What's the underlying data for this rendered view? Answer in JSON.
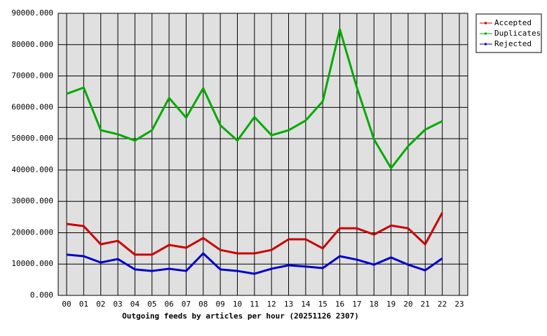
{
  "chart_data": {
    "type": "line",
    "xlabel": "Outgoing feeds by articles per hour (20251126 2307)",
    "categories": [
      "00",
      "01",
      "02",
      "03",
      "04",
      "05",
      "06",
      "07",
      "08",
      "09",
      "10",
      "11",
      "12",
      "13",
      "14",
      "15",
      "16",
      "17",
      "18",
      "19",
      "20",
      "21",
      "22",
      "23"
    ],
    "series": [
      {
        "name": "Accepted",
        "color": "#cc0000",
        "values": [
          22800,
          22100,
          16300,
          17400,
          13000,
          13000,
          16100,
          15200,
          18300,
          14500,
          13400,
          13400,
          14500,
          17900,
          17900,
          15000,
          21400,
          21400,
          19400,
          22300,
          21400,
          16300,
          26400,
          null
        ]
      },
      {
        "name": "Duplicates",
        "color": "#00aa00",
        "values": [
          64300,
          66300,
          52700,
          51400,
          49400,
          52700,
          63000,
          56700,
          66100,
          54300,
          49400,
          56900,
          51100,
          52700,
          55800,
          61900,
          84900,
          66300,
          49800,
          40600,
          47600,
          52900,
          55600,
          null
        ]
      },
      {
        "name": "Rejected",
        "color": "#0000cc",
        "values": [
          13000,
          12500,
          10500,
          11600,
          8300,
          7800,
          8500,
          7800,
          13400,
          8300,
          7800,
          6900,
          8500,
          9600,
          9200,
          8700,
          12500,
          11400,
          9800,
          12100,
          9800,
          8000,
          11800,
          null
        ]
      }
    ],
    "ylim": [
      0,
      90000
    ],
    "yticks": [
      {
        "value": 0,
        "label": "0.000"
      },
      {
        "value": 10000,
        "label": "10000.000"
      },
      {
        "value": 20000,
        "label": "20000.000"
      },
      {
        "value": 30000,
        "label": "30000.000"
      },
      {
        "value": 40000,
        "label": "40000.000"
      },
      {
        "value": 50000,
        "label": "50000.000"
      },
      {
        "value": 60000,
        "label": "60000.000"
      },
      {
        "value": 70000,
        "label": "70000.000"
      },
      {
        "value": 80000,
        "label": "80000.000"
      },
      {
        "value": 90000,
        "label": "90000.000"
      }
    ],
    "grid": true,
    "legend": "right"
  }
}
